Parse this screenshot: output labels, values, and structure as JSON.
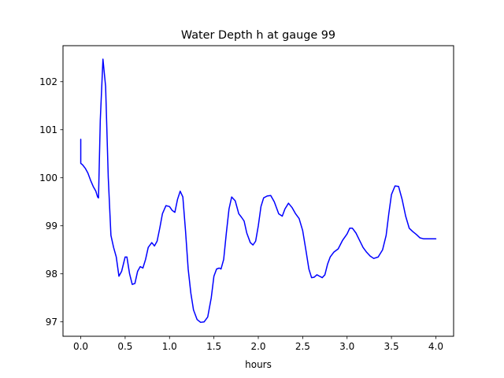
{
  "chart_data": {
    "type": "line",
    "title": "Water Depth h at gauge 99",
    "xlabel": "hours",
    "ylabel": "",
    "xlim": [
      -0.2,
      4.2
    ],
    "ylim": [
      96.7,
      102.75
    ],
    "xticks": [
      0.0,
      0.5,
      1.0,
      1.5,
      2.0,
      2.5,
      3.0,
      3.5,
      4.0
    ],
    "xtick_labels": [
      "0.0",
      "0.5",
      "1.0",
      "1.5",
      "2.0",
      "2.5",
      "3.0",
      "3.5",
      "4.0"
    ],
    "yticks": [
      97,
      98,
      99,
      100,
      101,
      102
    ],
    "ytick_labels": [
      "97",
      "98",
      "99",
      "100",
      "101",
      "102"
    ],
    "grid": false,
    "legend": "none",
    "series": [
      {
        "color": "#0000ff",
        "x": [
          0.0,
          0.0,
          0.02,
          0.05,
          0.08,
          0.11,
          0.14,
          0.17,
          0.19,
          0.2,
          0.22,
          0.25,
          0.28,
          0.31,
          0.34,
          0.37,
          0.4,
          0.43,
          0.46,
          0.5,
          0.52,
          0.55,
          0.58,
          0.61,
          0.64,
          0.67,
          0.7,
          0.73,
          0.76,
          0.8,
          0.83,
          0.86,
          0.89,
          0.92,
          0.96,
          1.0,
          1.03,
          1.06,
          1.09,
          1.12,
          1.15,
          1.18,
          1.21,
          1.24,
          1.27,
          1.31,
          1.35,
          1.39,
          1.43,
          1.47,
          1.5,
          1.53,
          1.56,
          1.58,
          1.61,
          1.64,
          1.67,
          1.7,
          1.74,
          1.78,
          1.81,
          1.84,
          1.87,
          1.91,
          1.94,
          1.97,
          2.0,
          2.03,
          2.06,
          2.1,
          2.14,
          2.18,
          2.23,
          2.27,
          2.3,
          2.34,
          2.38,
          2.42,
          2.46,
          2.5,
          2.54,
          2.57,
          2.6,
          2.63,
          2.66,
          2.69,
          2.72,
          2.75,
          2.78,
          2.81,
          2.85,
          2.9,
          2.95,
          3.0,
          3.03,
          3.06,
          3.1,
          3.14,
          3.18,
          3.22,
          3.26,
          3.3,
          3.35,
          3.4,
          3.44,
          3.47,
          3.5,
          3.54,
          3.58,
          3.62,
          3.66,
          3.7,
          3.74,
          3.78,
          3.82,
          3.86,
          3.9,
          3.95,
          4.0
        ],
        "y": [
          100.8,
          100.3,
          100.27,
          100.2,
          100.1,
          99.95,
          99.82,
          99.72,
          99.6,
          99.58,
          101.2,
          102.47,
          101.9,
          100.0,
          98.8,
          98.55,
          98.35,
          97.95,
          98.05,
          98.35,
          98.35,
          98.0,
          97.78,
          97.8,
          98.05,
          98.15,
          98.12,
          98.3,
          98.55,
          98.65,
          98.58,
          98.68,
          98.95,
          99.25,
          99.42,
          99.4,
          99.32,
          99.28,
          99.55,
          99.72,
          99.6,
          98.9,
          98.1,
          97.6,
          97.25,
          97.05,
          96.99,
          97.0,
          97.1,
          97.5,
          97.95,
          98.1,
          98.12,
          98.1,
          98.3,
          98.85,
          99.35,
          99.6,
          99.52,
          99.25,
          99.18,
          99.1,
          98.85,
          98.65,
          98.6,
          98.68,
          99.0,
          99.4,
          99.58,
          99.62,
          99.63,
          99.5,
          99.25,
          99.2,
          99.35,
          99.47,
          99.38,
          99.25,
          99.15,
          98.9,
          98.45,
          98.1,
          97.92,
          97.93,
          97.98,
          97.95,
          97.92,
          97.98,
          98.2,
          98.35,
          98.45,
          98.52,
          98.7,
          98.83,
          98.95,
          98.95,
          98.85,
          98.7,
          98.55,
          98.45,
          98.37,
          98.32,
          98.35,
          98.5,
          98.8,
          99.25,
          99.65,
          99.83,
          99.82,
          99.55,
          99.2,
          98.95,
          98.88,
          98.82,
          98.75,
          98.73,
          98.73,
          98.73,
          98.73
        ]
      }
    ]
  }
}
